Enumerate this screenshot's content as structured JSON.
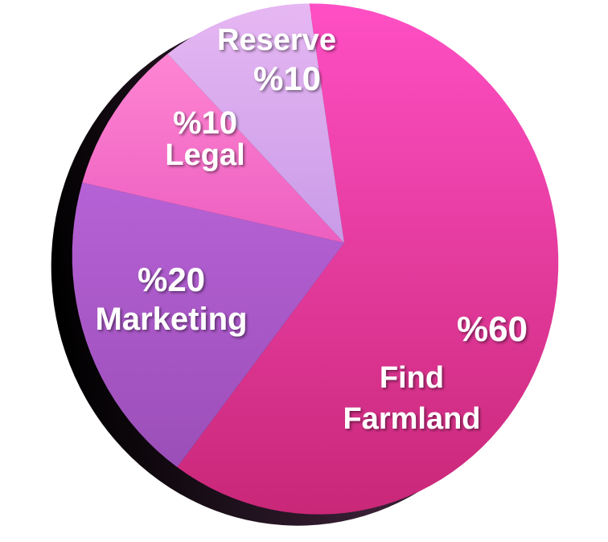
{
  "chart_data": {
    "type": "pie",
    "title": "",
    "slices": [
      {
        "name": "Find Farmland",
        "value": 60,
        "pct_label": "%60",
        "color": "#f0399f"
      },
      {
        "name": "Marketing",
        "value": 20,
        "pct_label": "%20",
        "color": "#b35ccc"
      },
      {
        "name": "Legal",
        "value": 10,
        "pct_label": "%10",
        "color": "#f571c6"
      },
      {
        "name": "Reserve",
        "value": 10,
        "pct_label": "%10",
        "color": "#d9a3ee"
      }
    ],
    "legend": "none",
    "style": "3d-tilted"
  }
}
